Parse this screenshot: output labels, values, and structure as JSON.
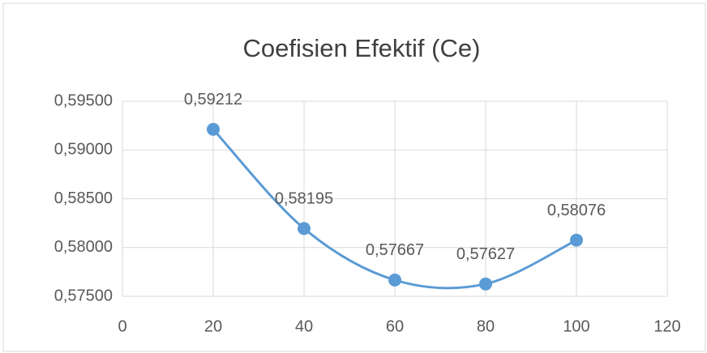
{
  "chart_data": {
    "type": "scatter",
    "title": "Coefisien Efektif (Ce)",
    "x": [
      20,
      40,
      60,
      80,
      100
    ],
    "series": [
      {
        "name": null,
        "color": "#5b9bd5",
        "values": [
          0.59212,
          0.58195,
          0.57667,
          0.57627,
          0.58076
        ],
        "value_labels": [
          "0,59212",
          "0,58195",
          "0,57667",
          "0,57627",
          "0,58076"
        ]
      }
    ],
    "xlim": [
      0,
      120
    ],
    "xticks": [
      0,
      20,
      40,
      60,
      80,
      100,
      120
    ],
    "ylim": [
      0.575,
      0.595
    ],
    "yticks": [
      {
        "value": 0.575,
        "label": "0,57500"
      },
      {
        "value": 0.58,
        "label": "0,58000"
      },
      {
        "value": 0.585,
        "label": "0,58500"
      },
      {
        "value": 0.59,
        "label": "0,59000"
      },
      {
        "value": 0.595,
        "label": "0,59500"
      }
    ],
    "grid": true,
    "smooth": true
  }
}
